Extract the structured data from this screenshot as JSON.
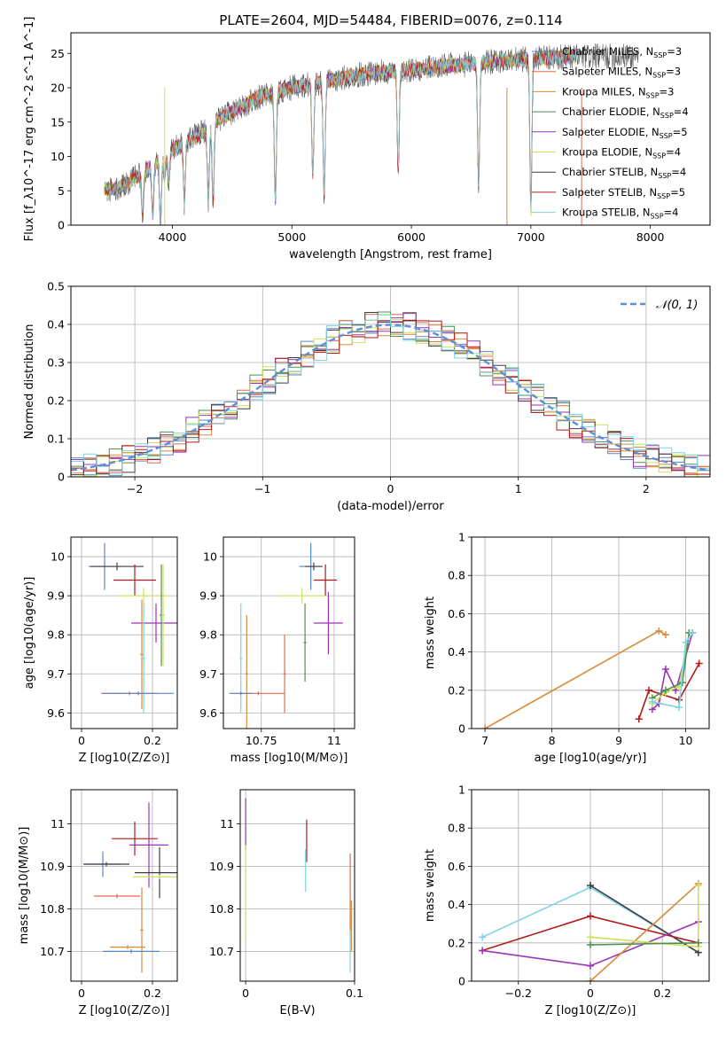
{
  "figure": {
    "title": "PLATE=2604, MJD=54484, FIBERID=0076, z=0.114"
  },
  "colors": {
    "grid": "#b0b0b0",
    "spines": "#000000",
    "gaussian": "#5b8fd6"
  },
  "legend": {
    "entries": [
      {
        "name": "Chabrier MILES, N$_{SSP}$=3",
        "color": "#5a86c8"
      },
      {
        "name": "Salpeter MILES, N$_{SSP}$=3",
        "color": "#e5694f"
      },
      {
        "name": "Kroupa MILES, N$_{SSP}$=3",
        "color": "#d98b37"
      },
      {
        "name": "Chabrier ELODIE, N$_{SSP}$=4",
        "color": "#4f8f50"
      },
      {
        "name": "Salpeter ELODIE, N$_{SSP}$=5",
        "color": "#9b34b8"
      },
      {
        "name": "Kroupa ELODIE, N$_{SSP}$=4",
        "color": "#c9e25a"
      },
      {
        "name": "Chabrier STELIB, N$_{SSP}$=4",
        "color": "#3f3f3f"
      },
      {
        "name": "Salpeter STELIB, N$_{SSP}$=5",
        "color": "#b21a1a"
      },
      {
        "name": "Kroupa STELIB, N$_{SSP}$=4",
        "color": "#7fd3e6"
      }
    ],
    "gaussian_label": "𝒩(0, 1)"
  },
  "chart_data": [
    {
      "type": "line",
      "id": "spectrum",
      "xlabel": "wavelength [Angstrom, rest frame]",
      "ylabel": "Flux [f_λ10^-17 erg cm^-2 s^-1 A^-1]",
      "xlim": [
        3150,
        8500
      ],
      "ylim": [
        0,
        28
      ],
      "xticks": [
        4000,
        5000,
        6000,
        7000,
        8000
      ],
      "yticks": [
        0,
        5,
        10,
        15,
        20,
        25
      ],
      "grid": false,
      "legend_loc": "right",
      "continuum": [
        [
          3430,
          5
        ],
        [
          3550,
          5.5
        ],
        [
          3700,
          7
        ],
        [
          3850,
          9
        ],
        [
          4000,
          11
        ],
        [
          4200,
          13
        ],
        [
          4400,
          15.5
        ],
        [
          4700,
          18.5
        ],
        [
          5000,
          20
        ],
        [
          5300,
          21
        ],
        [
          5600,
          22
        ],
        [
          5900,
          22.5
        ],
        [
          6200,
          23
        ],
        [
          6500,
          23.5
        ],
        [
          6800,
          24
        ],
        [
          7100,
          24.3
        ],
        [
          7400,
          24.5
        ],
        [
          7700,
          24.6
        ],
        [
          7900,
          24.6
        ]
      ],
      "absorption": [
        [
          3750,
          6.6
        ],
        [
          3835,
          7.4
        ],
        [
          3900,
          9.2
        ],
        [
          3934,
          2.8
        ],
        [
          3968,
          4.5
        ],
        [
          4100,
          8.8
        ],
        [
          4300,
          10.6
        ],
        [
          4340,
          11.5
        ],
        [
          4861,
          16.2
        ],
        [
          5175,
          13.0
        ],
        [
          5270,
          16.5
        ],
        [
          5890,
          14.5
        ],
        [
          6563,
          18.0
        ],
        [
          7000,
          22.0
        ]
      ]
    },
    {
      "type": "bar",
      "id": "residual-histogram",
      "xlabel": "(data-model)/error",
      "ylabel": "Normed distribution",
      "xlim": [
        -2.5,
        2.5
      ],
      "ylim": [
        0,
        0.5
      ],
      "xticks": [
        -2,
        -1,
        0,
        1,
        2
      ],
      "yticks": [
        0.0,
        0.1,
        0.2,
        0.3,
        0.4,
        0.5
      ],
      "grid": true,
      "legend_loc": "top-right",
      "bin_width": 0.1,
      "gaussian": {
        "mu": 0,
        "sigma": 1
      }
    },
    {
      "type": "scatter",
      "id": "age-vs-metallicity",
      "xlabel": "Z [log10(Z/Z⊙)]",
      "ylabel": "age [log10(age/yr)]",
      "xlim": [
        -0.03,
        0.27
      ],
      "ylim": [
        9.56,
        10.05
      ],
      "xticks": [
        0.0,
        0.2
      ],
      "yticks": [
        9.6,
        9.7,
        9.8,
        9.9,
        10.0
      ],
      "grid": true,
      "points": [
        {
          "x": 0.065,
          "y": 9.975,
          "xe": 0.045,
          "ye": 0.06,
          "series": 0
        },
        {
          "x": 0.1,
          "y": 9.975,
          "xe": 0.075,
          "ye": 0.01,
          "series": 6
        },
        {
          "x": 0.15,
          "y": 9.94,
          "xe": 0.06,
          "ye": 0.04,
          "series": 7
        },
        {
          "x": 0.175,
          "y": 9.9,
          "xe": 0.07,
          "ye": 0.02,
          "series": 5
        },
        {
          "x": 0.21,
          "y": 9.83,
          "xe": 0.07,
          "ye": 0.05,
          "series": 4
        },
        {
          "x": 0.225,
          "y": 9.85,
          "xe": 0.005,
          "ye": 0.13,
          "series": 3
        },
        {
          "x": 0.23,
          "y": 9.85,
          "xe": 0.005,
          "ye": 0.13,
          "series": 5
        },
        {
          "x": 0.135,
          "y": 9.65,
          "xe": 0.08,
          "ye": 0.005,
          "series": 1
        },
        {
          "x": 0.17,
          "y": 9.75,
          "xe": 0.005,
          "ye": 0.14,
          "series": 2
        },
        {
          "x": 0.175,
          "y": 9.74,
          "xe": 0.005,
          "ye": 0.14,
          "series": 8
        },
        {
          "x": 0.16,
          "y": 9.65,
          "xe": 0.1,
          "ye": 0.005,
          "series": 0
        }
      ]
    },
    {
      "type": "scatter",
      "id": "age-vs-mass",
      "xlabel": "mass [log10(M/M⊙)]",
      "ylabel": "",
      "xlim": [
        10.62,
        11.07
      ],
      "ylim": [
        9.56,
        10.05
      ],
      "xticks": [
        10.75,
        11.0
      ],
      "yticks": [
        9.6,
        9.7,
        9.8,
        9.9,
        10.0
      ],
      "grid": true,
      "points": [
        {
          "x": 10.92,
          "y": 9.975,
          "xe": 0.04,
          "ye": 0.06,
          "series": 0
        },
        {
          "x": 10.93,
          "y": 9.975,
          "xe": 0.03,
          "ye": 0.01,
          "series": 6
        },
        {
          "x": 10.97,
          "y": 9.94,
          "xe": 0.04,
          "ye": 0.04,
          "series": 7
        },
        {
          "x": 10.89,
          "y": 9.9,
          "xe": 0.08,
          "ye": 0.02,
          "series": 5
        },
        {
          "x": 10.98,
          "y": 9.83,
          "xe": 0.05,
          "ye": 0.08,
          "series": 4
        },
        {
          "x": 10.9,
          "y": 9.78,
          "xe": 0.005,
          "ye": 0.1,
          "series": 3
        },
        {
          "x": 10.74,
          "y": 9.65,
          "xe": 0.09,
          "ye": 0.005,
          "series": 1
        },
        {
          "x": 10.83,
          "y": 9.7,
          "xe": 0.005,
          "ye": 0.1,
          "series": 1
        },
        {
          "x": 10.7,
          "y": 9.7,
          "xe": 0.005,
          "ye": 0.15,
          "series": 2
        },
        {
          "x": 10.68,
          "y": 9.74,
          "xe": 0.005,
          "ye": 0.14,
          "series": 8
        },
        {
          "x": 10.68,
          "y": 9.65,
          "xe": 0.04,
          "ye": 0.005,
          "series": 0
        }
      ]
    },
    {
      "type": "line",
      "id": "mass-weight-vs-age",
      "xlabel": "age [log10(age/yr)]",
      "ylabel": "mass weight",
      "xlim": [
        6.8,
        10.35
      ],
      "ylim": [
        0,
        1
      ],
      "xticks": [
        7,
        8,
        9,
        10
      ],
      "yticks": [
        0.0,
        0.2,
        0.4,
        0.6,
        0.8,
        1.0
      ],
      "grid": true,
      "series": [
        {
          "series": 2,
          "x": [
            7.0,
            9.6,
            9.7
          ],
          "y": [
            0.0,
            0.51,
            0.49
          ]
        },
        {
          "series": 7,
          "x": [
            9.3,
            9.45,
            9.9,
            10.2
          ],
          "y": [
            0.05,
            0.2,
            0.15,
            0.34
          ]
        },
        {
          "series": 4,
          "x": [
            9.5,
            9.6,
            9.7,
            9.85,
            10.1
          ],
          "y": [
            0.1,
            0.13,
            0.31,
            0.2,
            0.5
          ]
        },
        {
          "series": 5,
          "x": [
            9.5,
            9.7,
            9.9,
            10.05
          ],
          "y": [
            0.13,
            0.19,
            0.22,
            0.5
          ]
        },
        {
          "series": 3,
          "x": [
            9.5,
            9.7,
            9.95,
            10.05
          ],
          "y": [
            0.16,
            0.2,
            0.24,
            0.5
          ]
        },
        {
          "series": 8,
          "x": [
            9.5,
            9.9,
            10.0,
            10.1
          ],
          "y": [
            0.14,
            0.11,
            0.45,
            0.5
          ]
        }
      ]
    },
    {
      "type": "scatter",
      "id": "mass-vs-metallicity",
      "xlabel": "Z [log10(Z/Z⊙)]",
      "ylabel": "mass [log10(M/M⊙)]",
      "xlim": [
        -0.03,
        0.27
      ],
      "ylim": [
        10.63,
        11.08
      ],
      "xticks": [
        0.0,
        0.2
      ],
      "yticks": [
        10.7,
        10.8,
        10.9,
        11.0
      ],
      "grid": true,
      "points": [
        {
          "x": 0.06,
          "y": 10.905,
          "xe": 0.05,
          "ye": 0.03,
          "series": 0
        },
        {
          "x": 0.07,
          "y": 10.905,
          "xe": 0.065,
          "ye": 0.005,
          "series": 6
        },
        {
          "x": 0.15,
          "y": 10.965,
          "xe": 0.065,
          "ye": 0.04,
          "series": 7
        },
        {
          "x": 0.19,
          "y": 10.95,
          "xe": 0.055,
          "ye": 0.1,
          "series": 4
        },
        {
          "x": 0.22,
          "y": 10.885,
          "xe": 0.07,
          "ye": 0.06,
          "series": 6
        },
        {
          "x": 0.22,
          "y": 10.875,
          "xe": 0.075,
          "ye": 0.005,
          "series": 5
        },
        {
          "x": 0.1,
          "y": 10.83,
          "xe": 0.065,
          "ye": 0.005,
          "series": 1
        },
        {
          "x": 0.13,
          "y": 10.71,
          "xe": 0.05,
          "ye": 0.005,
          "series": 2
        },
        {
          "x": 0.17,
          "y": 10.75,
          "xe": 0.005,
          "ye": 0.1,
          "series": 2
        },
        {
          "x": 0.14,
          "y": 10.7,
          "xe": 0.08,
          "ye": 0.005,
          "series": 0
        }
      ]
    },
    {
      "type": "scatter",
      "id": "mass-vs-extinction",
      "xlabel": "E(B-V)",
      "ylabel": "",
      "xlim": [
        -0.005,
        0.1
      ],
      "ylim": [
        10.63,
        11.08
      ],
      "xticks": [
        0.0,
        0.1
      ],
      "yticks": [
        10.7,
        10.8,
        10.9,
        11.0
      ],
      "grid": true,
      "points": [
        {
          "x": 0.0,
          "y": 11.0,
          "ye": 0.06,
          "series": 4
        },
        {
          "x": 0.0,
          "y": 10.84,
          "ye": 0.11,
          "series": 5
        },
        {
          "x": 0.056,
          "y": 10.96,
          "ye": 0.05,
          "series": 7
        },
        {
          "x": 0.055,
          "y": 10.89,
          "ye": 0.05,
          "series": 8
        },
        {
          "x": 0.096,
          "y": 10.83,
          "ye": 0.1,
          "series": 1
        },
        {
          "x": 0.097,
          "y": 10.76,
          "ye": 0.06,
          "series": 2
        },
        {
          "x": 0.096,
          "y": 10.7,
          "ye": 0.05,
          "series": 8
        }
      ]
    },
    {
      "type": "line",
      "id": "mass-weight-vs-metallicity",
      "xlabel": "Z [log10(Z/Z⊙)]",
      "ylabel": "mass weight",
      "xlim": [
        -0.33,
        0.33
      ],
      "ylim": [
        0,
        1
      ],
      "xticks": [
        -0.2,
        0.0,
        0.2
      ],
      "yticks": [
        0.0,
        0.2,
        0.4,
        0.6,
        0.8,
        1.0
      ],
      "grid": true,
      "series": [
        {
          "series": 8,
          "x": [
            -0.3,
            0.0,
            0.3
          ],
          "y": [
            0.23,
            0.49,
            0.15
          ]
        },
        {
          "series": 6,
          "x": [
            0.0,
            0.3
          ],
          "y": [
            0.5,
            0.15
          ]
        },
        {
          "series": 7,
          "x": [
            -0.3,
            0.0,
            0.3
          ],
          "y": [
            0.16,
            0.34,
            0.2
          ]
        },
        {
          "series": 4,
          "x": [
            -0.3,
            0.0,
            0.3
          ],
          "y": [
            0.16,
            0.08,
            0.31
          ]
        },
        {
          "series": 2,
          "x": [
            0.0,
            0.3
          ],
          "y": [
            0.0,
            0.51
          ]
        },
        {
          "series": 5,
          "x": [
            0.0,
            0.3,
            0.3
          ],
          "y": [
            0.23,
            0.18,
            0.5
          ]
        },
        {
          "series": 3,
          "x": [
            0.0,
            0.3
          ],
          "y": [
            0.19,
            0.2
          ]
        }
      ]
    }
  ]
}
